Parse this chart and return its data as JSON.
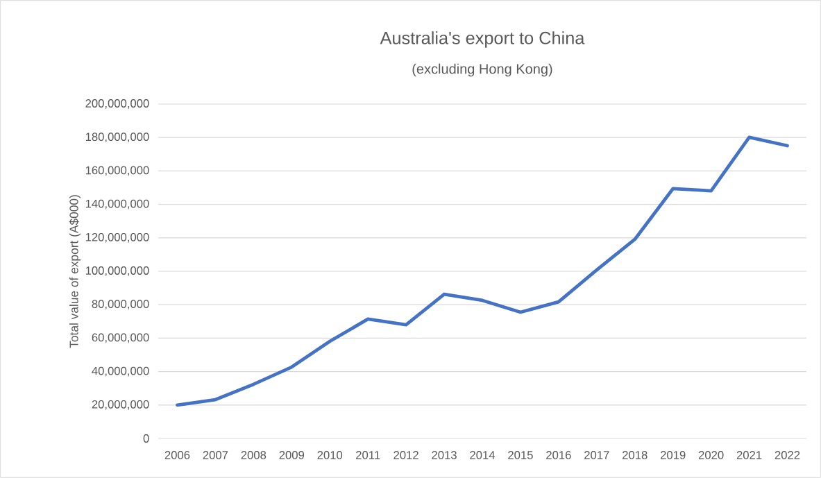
{
  "chart_data": {
    "type": "line",
    "title": "Australia's export to China",
    "subtitle": "(excluding Hong Kong)",
    "ylabel": "Total value of export (A$000)",
    "categories": [
      "2006",
      "2007",
      "2008",
      "2009",
      "2010",
      "2011",
      "2012",
      "2013",
      "2014",
      "2015",
      "2016",
      "2017",
      "2018",
      "2019",
      "2020",
      "2021",
      "2022"
    ],
    "series": [
      {
        "color": "#4472c4",
        "values": [
          20000000,
          23200000,
          32400000,
          42700000,
          58100000,
          71400000,
          68000000,
          86300000,
          82600000,
          75500000,
          81700000,
          100800000,
          119100000,
          149400000,
          148100000,
          180100000,
          175100000
        ]
      }
    ],
    "ylim": [
      0,
      200000000
    ],
    "yticks": [
      {
        "value": 0,
        "label": "0"
      },
      {
        "value": 20000000,
        "label": "20,000,000"
      },
      {
        "value": 40000000,
        "label": "40,000,000"
      },
      {
        "value": 60000000,
        "label": "60,000,000"
      },
      {
        "value": 80000000,
        "label": "80,000,000"
      },
      {
        "value": 100000000,
        "label": "100,000,000"
      },
      {
        "value": 120000000,
        "label": "120,000,000"
      },
      {
        "value": 140000000,
        "label": "140,000,000"
      },
      {
        "value": 160000000,
        "label": "160,000,000"
      },
      {
        "value": 180000000,
        "label": "180,000,000"
      },
      {
        "value": 200000000,
        "label": "200,000,000"
      }
    ],
    "grid": "y",
    "marker": "none",
    "line_style": "solid"
  }
}
